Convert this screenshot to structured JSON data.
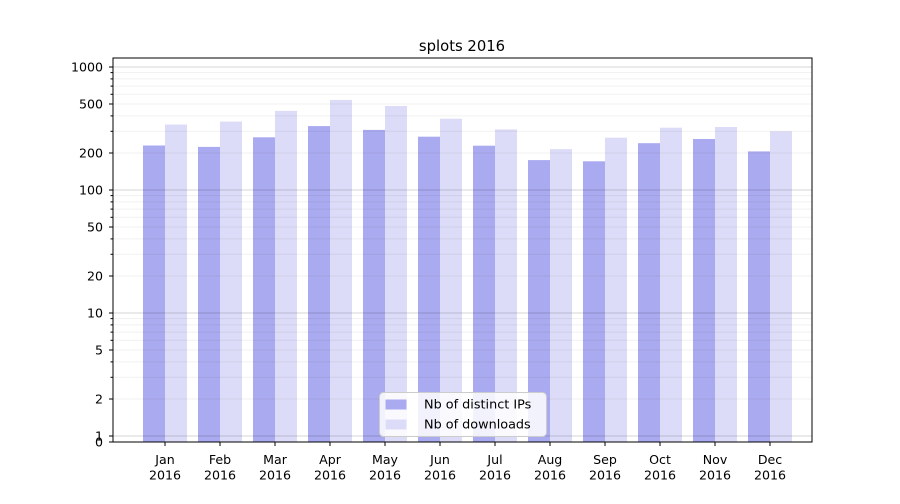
{
  "figure": {
    "background": "#ffffff"
  },
  "chart_data": {
    "type": "bar",
    "title": "splots 2016",
    "categories": [
      "Jan",
      "Feb",
      "Mar",
      "Apr",
      "May",
      "Jun",
      "Jul",
      "Aug",
      "Sep",
      "Oct",
      "Nov",
      "Dec"
    ],
    "category_year": "2016",
    "series": [
      {
        "name": "Nb of distinct IPs",
        "color": "#aaaaf0",
        "values": [
          230,
          224,
          268,
          331,
          308,
          271,
          229,
          175,
          171,
          240,
          260,
          206
        ]
      },
      {
        "name": "Nb of downloads",
        "color": "#dcdcf8",
        "values": [
          341,
          360,
          440,
          540,
          482,
          380,
          311,
          215,
          266,
          321,
          325,
          300
        ]
      }
    ],
    "yscale": "log",
    "yticks_labeled": [
      1000,
      500,
      200,
      100,
      50,
      20,
      10,
      5,
      2,
      1,
      0
    ],
    "ylim": [
      0,
      1180
    ],
    "xlabel": "",
    "ylabel": "",
    "grid": "on",
    "legend_position": "lower center"
  },
  "colors": {
    "bar_distinct_ips": "#aaaaf0",
    "bar_downloads": "#dcdcf8",
    "axis": "#000000",
    "grid_major": "#d6d6d6",
    "grid_minor": "#f0f0f0",
    "legend_border": "#cccccc",
    "legend_background": "rgba(255,255,255,0.85)"
  }
}
